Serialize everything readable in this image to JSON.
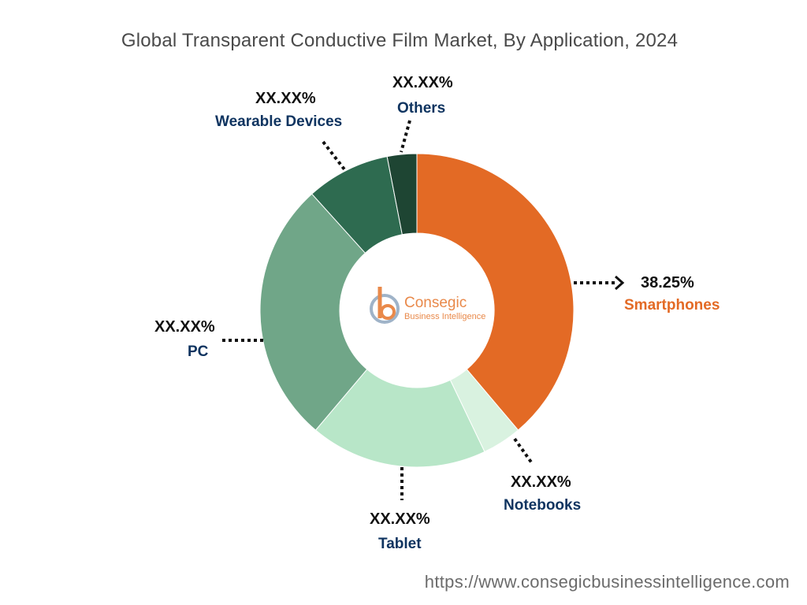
{
  "title": "Global Transparent Conductive Film Market, By Application, 2024",
  "url": "https://www.consegicbusinessintelligence.com",
  "logo": {
    "name": "Consegic",
    "tagline": "Business Intelligence"
  },
  "chart_data": {
    "type": "pie",
    "variant": "donut",
    "title": "Global Transparent Conductive Film Market, By Application, 2024",
    "slices": [
      {
        "name": "Smartphones",
        "label": "38.25%",
        "value": 38.25,
        "color": "#e36a25"
      },
      {
        "name": "Notebooks",
        "label": "XX.XX%",
        "value": 4.0,
        "color": "#d9f2e0"
      },
      {
        "name": "Tablet",
        "label": "XX.XX%",
        "value": 18.0,
        "color": "#b8e6c8"
      },
      {
        "name": "PC",
        "label": "XX.XX%",
        "value": 26.75,
        "color": "#70a688"
      },
      {
        "name": "Wearable Devices",
        "label": "XX.XX%",
        "value": 8.5,
        "color": "#2e6b50"
      },
      {
        "name": "Others",
        "label": "XX.XX%",
        "value": 3.0,
        "color": "#1e4533"
      }
    ]
  }
}
